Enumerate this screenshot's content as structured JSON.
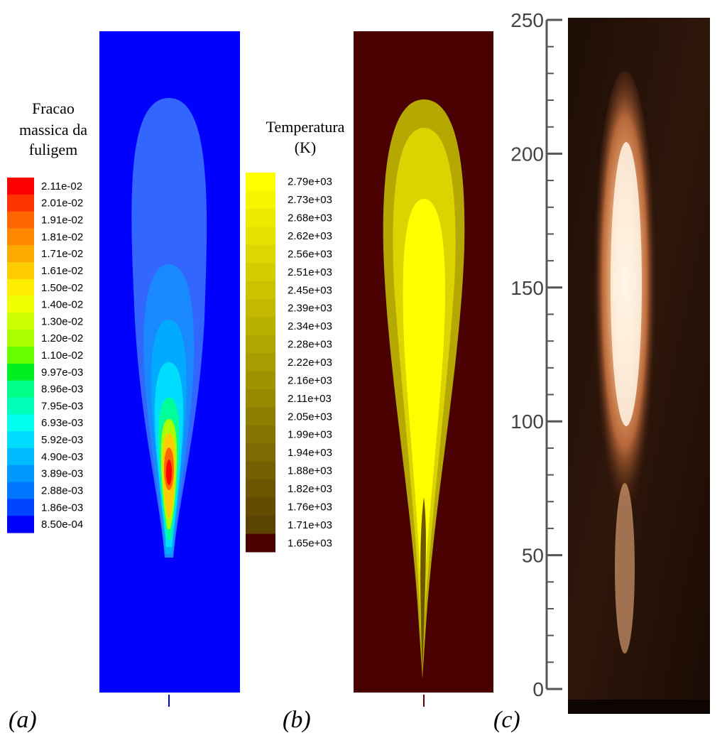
{
  "panels": [
    {
      "label": "(a)",
      "colorbar": {
        "title": [
          "Fracao",
          "massica da",
          "fuligem"
        ],
        "labels": [
          "2.11e-02",
          "2.01e-02",
          "1.91e-02",
          "1.81e-02",
          "1.71e-02",
          "1.61e-02",
          "1.50e-02",
          "1.40e-02",
          "1.30e-02",
          "1.20e-02",
          "1.10e-02",
          "9.97e-03",
          "8.96e-03",
          "7.95e-03",
          "6.93e-03",
          "5.92e-03",
          "4.90e-03",
          "3.89e-03",
          "2.88e-03",
          "1.86e-03",
          "8.50e-04"
        ],
        "colors": [
          "#ff0000",
          "#ff3300",
          "#ff6600",
          "#ff8800",
          "#ffaa00",
          "#ffcc00",
          "#ffee00",
          "#eeff00",
          "#ccff00",
          "#aaff00",
          "#66ff00",
          "#00ee22",
          "#00ff88",
          "#00ffbb",
          "#00ffee",
          "#00ddff",
          "#00bbff",
          "#0099ff",
          "#0077ff",
          "#0044ff",
          "#0000ff"
        ]
      }
    },
    {
      "label": "(b)",
      "colorbar": {
        "title": [
          "Temperatura",
          "(K)"
        ],
        "labels": [
          "2.79e+03",
          "2.73e+03",
          "2.68e+03",
          "2.62e+03",
          "2.56e+03",
          "2.51e+03",
          "2.45e+03",
          "2.39e+03",
          "2.34e+03",
          "2.28e+03",
          "2.22e+03",
          "2.16e+03",
          "2.11e+03",
          "2.05e+03",
          "1.99e+03",
          "1.94e+03",
          "1.88e+03",
          "1.82e+03",
          "1.76e+03",
          "1.71e+03",
          "1.65e+03"
        ],
        "colors": [
          "#ffff00",
          "#f6f500",
          "#eeeb00",
          "#e5e100",
          "#dcd700",
          "#d4cd00",
          "#cbc300",
          "#c2b900",
          "#bab000",
          "#b1a600",
          "#a89c00",
          "#a09200",
          "#978800",
          "#8e7e00",
          "#867400",
          "#7d6a00",
          "#746000",
          "#6c5600",
          "#634c00",
          "#5a4400",
          "#4a0000"
        ]
      }
    },
    {
      "label": "(c)",
      "axis": {
        "ylim": [
          0,
          250
        ],
        "yticks": [
          0,
          50,
          100,
          150,
          200,
          250
        ]
      }
    }
  ]
}
